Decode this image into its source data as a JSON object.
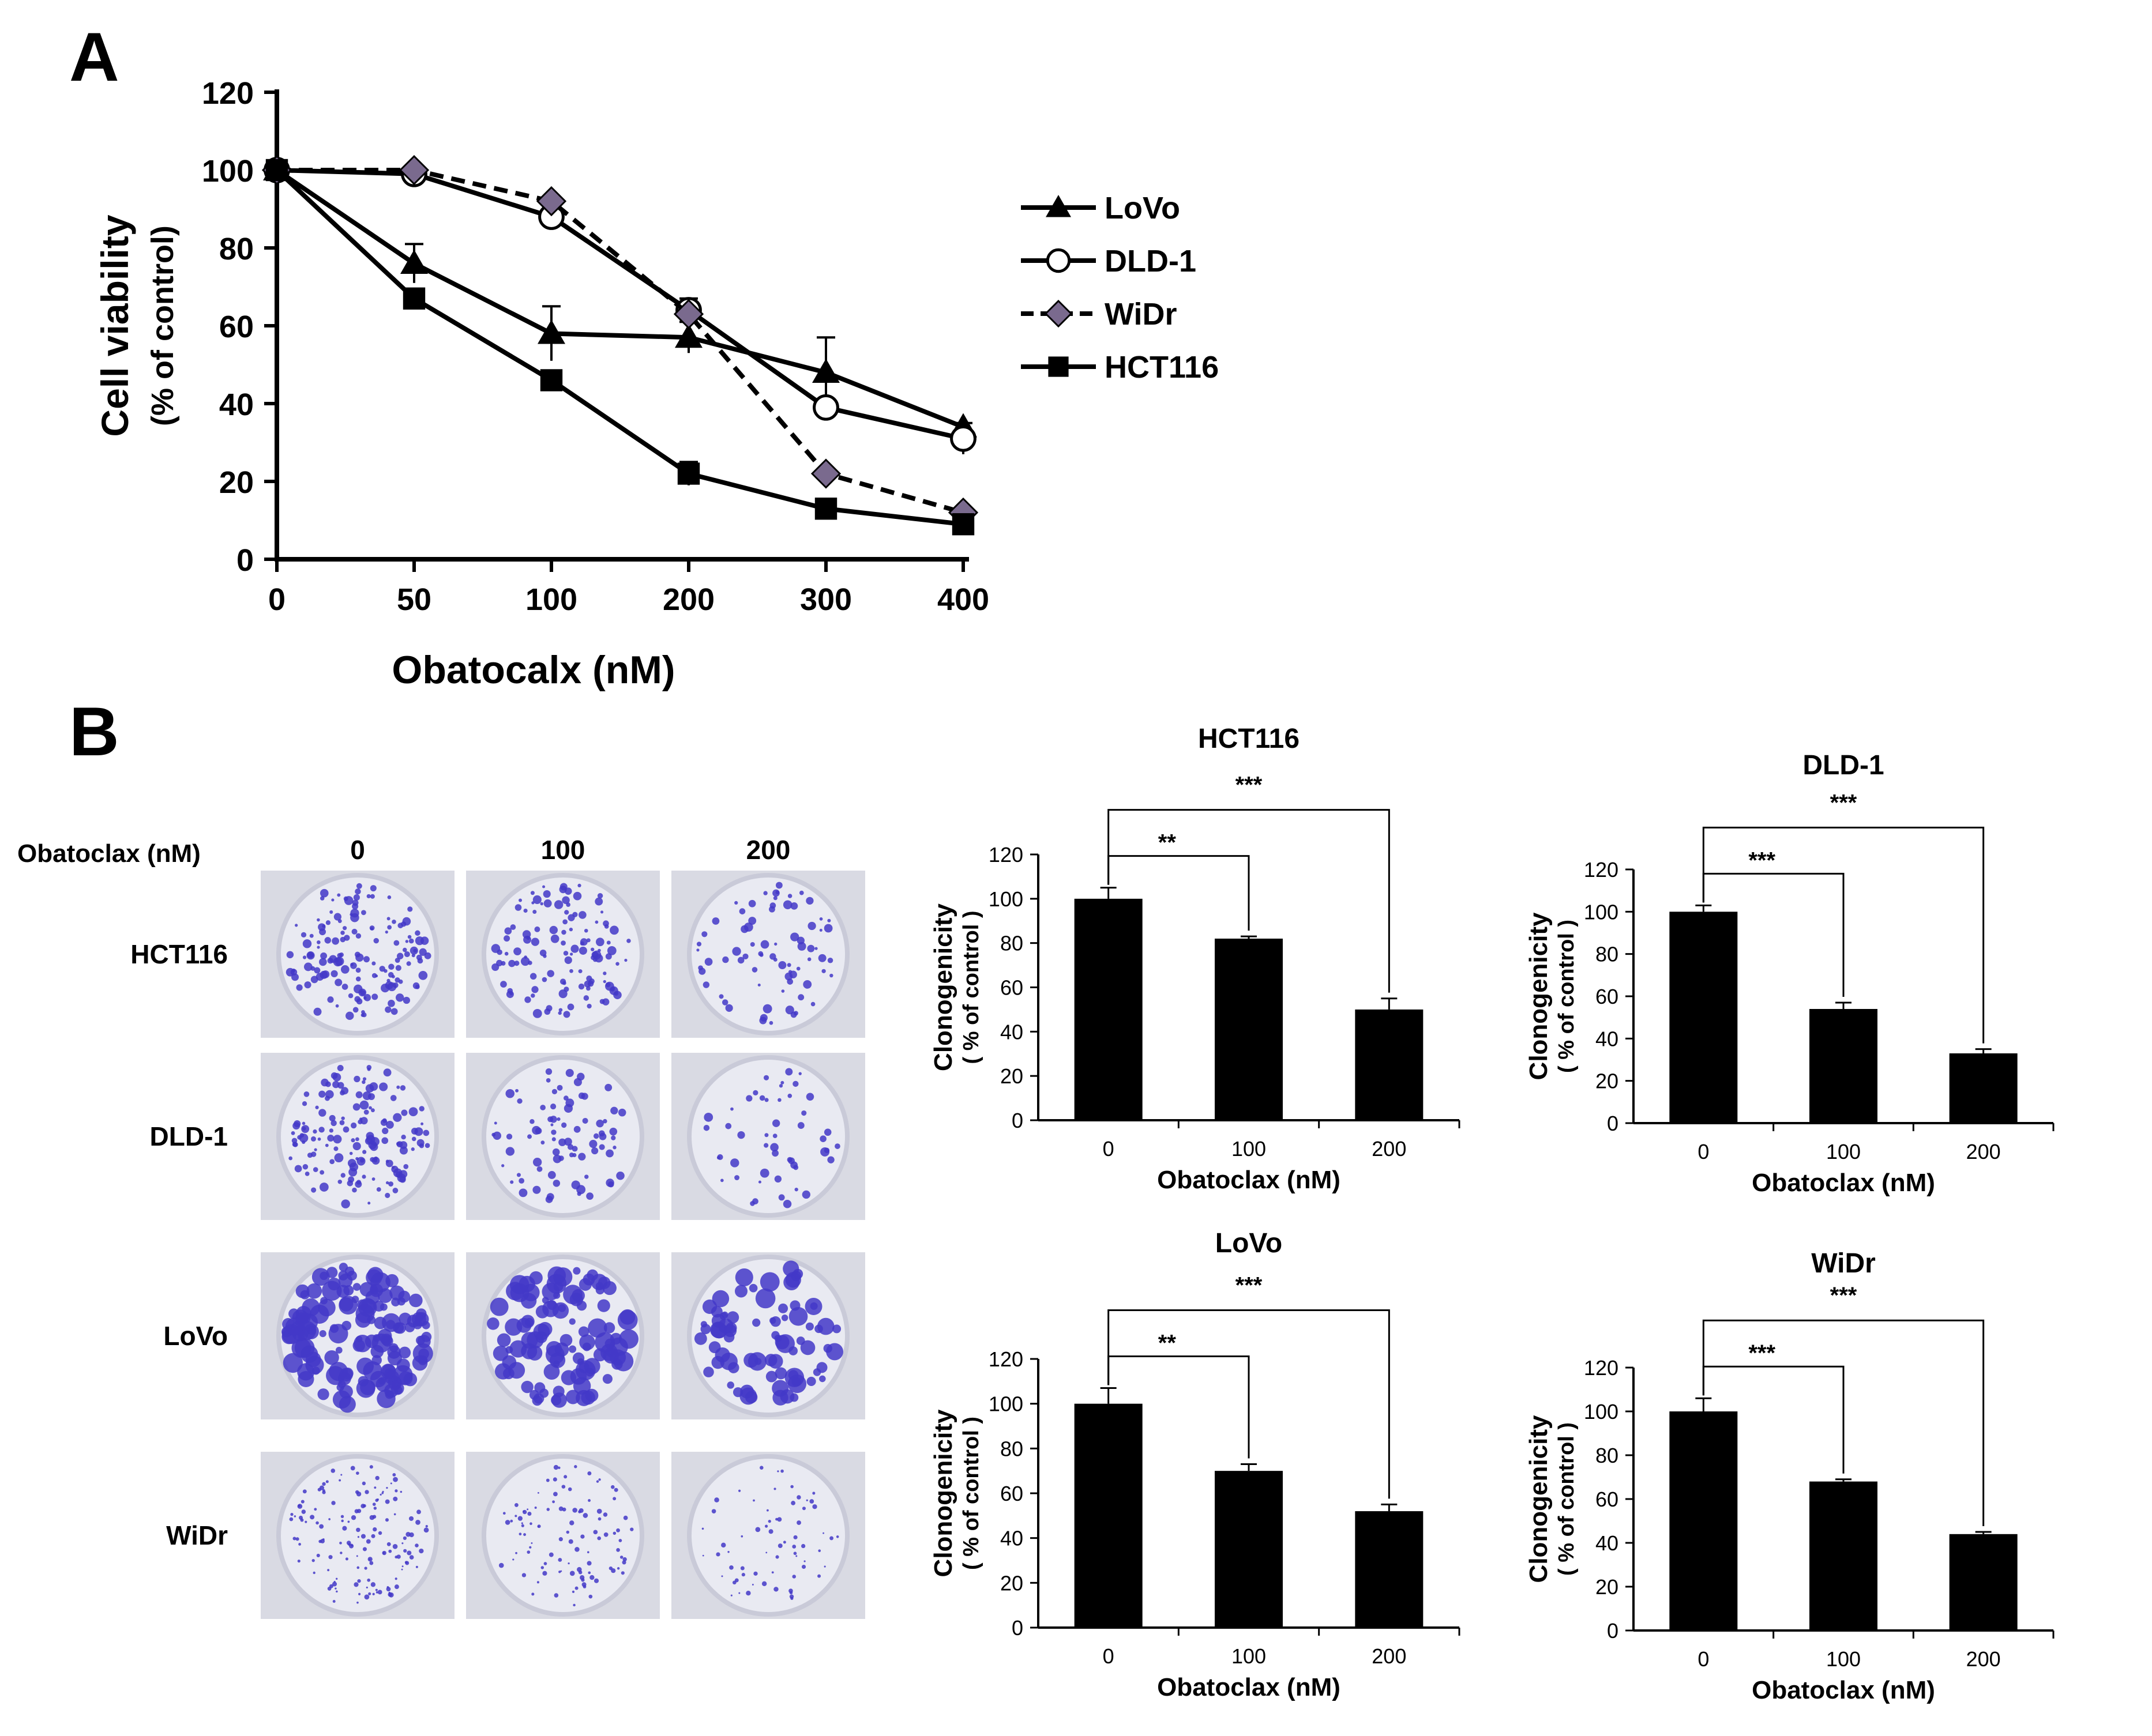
{
  "panels": {
    "a": "A",
    "b": "B"
  },
  "colors": {
    "ink": "#000000",
    "widr_marker": "#7a6a8e",
    "plate_bg": "#e9eaf2",
    "plate_rim": "#c9cad8",
    "colony": "#4338c8"
  },
  "icons": [
    "triangle-marker-icon",
    "circle-marker-icon",
    "diamond-marker-icon",
    "square-marker-icon"
  ],
  "plates": {
    "row_header": "Obatoclax  (nM)",
    "doses": [
      "0",
      "100",
      "200"
    ],
    "cell_lines": [
      "HCT116",
      "DLD-1",
      "LoVo",
      "WiDr"
    ],
    "colony_density": [
      [
        1.0,
        0.82,
        0.5
      ],
      [
        1.0,
        0.54,
        0.33
      ],
      [
        1.0,
        0.7,
        0.52
      ],
      [
        1.0,
        0.68,
        0.44
      ]
    ]
  },
  "chart_data": [
    {
      "type": "line",
      "title": "",
      "xlabel": "Obatocalx (nM)",
      "ylabel": "Cell viability",
      "ylabel2": "(% of control)",
      "categories": [
        "0",
        "50",
        "100",
        "200",
        "300",
        "400"
      ],
      "ylim": [
        0,
        120
      ],
      "yticks": [
        "0",
        "20",
        "40",
        "60",
        "80",
        "100",
        "120"
      ],
      "legend_position": "right",
      "series": [
        {
          "name": "LoVo",
          "marker": "triangle",
          "dash": "solid",
          "values": [
            100,
            76,
            58,
            57,
            48,
            34
          ],
          "errors": [
            0,
            5,
            7,
            4,
            9,
            0
          ]
        },
        {
          "name": "DLD-1",
          "marker": "circle",
          "dash": "solid",
          "values": [
            100,
            99,
            88,
            64,
            39,
            31
          ],
          "errors": [
            0,
            0,
            2,
            3,
            0,
            4
          ]
        },
        {
          "name": "WiDr",
          "marker": "diamond",
          "dash": "dashed",
          "values": [
            100,
            100,
            92,
            63,
            22,
            12
          ],
          "errors": [
            0,
            0,
            0,
            0,
            0,
            0
          ]
        },
        {
          "name": "HCT116",
          "marker": "square",
          "dash": "solid",
          "values": [
            100,
            67,
            46,
            22,
            13,
            9
          ],
          "errors": [
            0,
            0,
            0,
            3,
            0,
            0
          ]
        }
      ]
    },
    {
      "type": "bar",
      "title": "HCT116",
      "categories": [
        "0",
        "100",
        "200"
      ],
      "values": [
        100,
        82,
        50
      ],
      "errors": [
        5,
        1,
        5
      ],
      "ylim": [
        0,
        120
      ],
      "yticks": [
        "0",
        "20",
        "40",
        "60",
        "80",
        "100",
        "120"
      ],
      "xlabel": "Obatoclax  (nM)",
      "ylabel": "Clonogenicity",
      "ylabel2": "( % of control )",
      "annotations": [
        {
          "from": 0,
          "to": 1,
          "label": "**"
        },
        {
          "from": 0,
          "to": 2,
          "label": "***"
        }
      ]
    },
    {
      "type": "bar",
      "title": "DLD-1",
      "categories": [
        "0",
        "100",
        "200"
      ],
      "values": [
        100,
        54,
        33
      ],
      "errors": [
        3,
        3,
        2
      ],
      "ylim": [
        0,
        120
      ],
      "yticks": [
        "0",
        "20",
        "40",
        "60",
        "80",
        "100",
        "120"
      ],
      "xlabel": "Obatoclax  (nM)",
      "ylabel": "Clonogenicity",
      "ylabel2": "( % of control )",
      "annotations": [
        {
          "from": 0,
          "to": 1,
          "label": "***"
        },
        {
          "from": 0,
          "to": 2,
          "label": "***"
        }
      ]
    },
    {
      "type": "bar",
      "title": "LoVo",
      "categories": [
        "0",
        "100",
        "200"
      ],
      "values": [
        100,
        70,
        52
      ],
      "errors": [
        7,
        3,
        3
      ],
      "ylim": [
        0,
        120
      ],
      "yticks": [
        "0",
        "20",
        "40",
        "60",
        "80",
        "100",
        "120"
      ],
      "xlabel": "Obatoclax  (nM)",
      "ylabel": "Clonogenicity",
      "ylabel2": "( % of control )",
      "annotations": [
        {
          "from": 0,
          "to": 1,
          "label": "**"
        },
        {
          "from": 0,
          "to": 2,
          "label": "***"
        }
      ]
    },
    {
      "type": "bar",
      "title": "WiDr",
      "categories": [
        "0",
        "100",
        "200"
      ],
      "values": [
        100,
        68,
        44
      ],
      "errors": [
        6,
        1,
        1
      ],
      "ylim": [
        0,
        120
      ],
      "yticks": [
        "0",
        "20",
        "40",
        "60",
        "80",
        "100",
        "120"
      ],
      "xlabel": "Obatoclax  (nM)",
      "ylabel": "Clonogenicity",
      "ylabel2": "( % of control )",
      "annotations": [
        {
          "from": 0,
          "to": 1,
          "label": "***"
        },
        {
          "from": 0,
          "to": 2,
          "label": "***"
        }
      ]
    }
  ]
}
